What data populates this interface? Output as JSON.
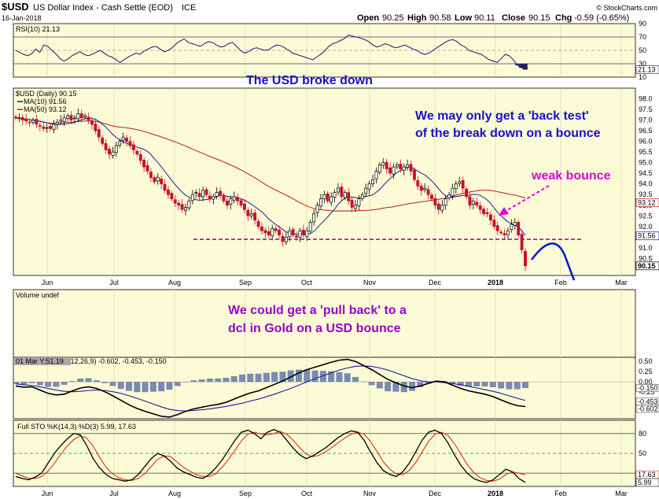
{
  "header": {
    "symbol": "$USD",
    "name": "US Dollar Index - Cash Settle (EOD)",
    "exchange": "ICE",
    "date": "16-Jan-2018",
    "watermark": "© StockCharts.com",
    "open_label": "Open",
    "open": "90.25",
    "high_label": "High",
    "high": "90.58",
    "low_label": "Low",
    "low": "90.11",
    "close_label": "Close",
    "close": "90.15",
    "chg_label": "Chg",
    "chg": "-0.59 (-0.65%)"
  },
  "colors": {
    "panel_bg": "#fbfbd6",
    "candle_up": "#000000",
    "candle_down": "#c8102e",
    "ma10": "#1a1aa0",
    "ma50": "#c01818",
    "support_line": "#8a1ab8",
    "annotation_blue": "#1a10c8",
    "annotation_magenta": "#e000e0",
    "annotation_purple": "#9a00c8",
    "macd_line": "#000000",
    "macd_signal": "#1a1aa0",
    "macd_hist": "#7a8ab0",
    "sto_k": "#000000",
    "sto_d": "#e03010",
    "projection": "#0018c8"
  },
  "annotations": {
    "usd_broke_down": "The USD broke down",
    "back_test_1": "We may only get a 'back test'",
    "back_test_2": "of the break down on a bounce",
    "weak_bounce": "weak bounce",
    "pull_back_1": "We could get a 'pull back' to a",
    "pull_back_2": "dcl in Gold on a USD bounce"
  },
  "chart_data": [
    {
      "type": "line",
      "panel": "rsi",
      "label": "RSI(10) 21.13",
      "current": 21.13,
      "ylim": [
        10,
        90
      ],
      "yticks": [
        90,
        70,
        50,
        30,
        10
      ],
      "thresholds": [
        70,
        50,
        30
      ],
      "series": [
        {
          "name": "RSI(10)",
          "values": [
            50,
            47,
            44,
            42,
            45,
            52,
            47,
            58,
            56,
            50,
            45,
            38,
            34,
            37,
            42,
            45,
            48,
            44,
            42,
            44,
            47,
            50,
            46,
            42,
            40,
            36,
            32,
            36,
            40,
            43,
            46,
            44,
            49,
            52,
            55,
            56,
            52,
            48,
            50,
            54,
            60,
            64,
            67,
            62,
            60,
            58,
            56,
            60,
            63,
            62,
            58,
            55,
            56,
            60,
            62,
            56,
            50,
            46,
            48,
            52,
            54,
            52,
            50,
            51,
            55,
            58,
            57,
            54,
            50,
            46,
            44,
            42,
            40,
            38,
            36,
            40,
            44,
            49,
            56,
            60,
            62,
            65,
            68,
            73,
            71,
            70,
            68,
            66,
            63,
            58,
            55,
            57,
            60,
            58,
            55,
            54,
            56,
            58,
            55,
            52,
            50,
            46,
            44,
            46,
            50,
            54,
            58,
            62,
            65,
            66,
            63,
            58,
            55,
            50,
            48,
            46,
            44,
            40,
            36,
            34,
            32,
            38,
            44,
            42,
            36,
            28,
            24,
            21.13
          ]
        }
      ]
    },
    {
      "type": "candlestick",
      "panel": "price",
      "label": "$USD (Daily) 90.15",
      "legend": [
        "MA(10) 91.56",
        "MA(50) 93.12"
      ],
      "ylim": [
        89.7,
        98.5
      ],
      "yticks": [
        98.0,
        97.5,
        97.0,
        96.5,
        96.0,
        95.5,
        95.0,
        94.5,
        94.0,
        93.5,
        93.0,
        92.5,
        92.0,
        91.5,
        91.0,
        90.5
      ],
      "last_value_tags": [
        "93.12",
        "91.56",
        "90.15"
      ],
      "support_level": 91.4,
      "x_labels": [
        "Jun",
        "Jul",
        "Aug",
        "Sep",
        "Oct",
        "Nov",
        "Dec",
        "2018",
        "Feb",
        "Mar"
      ],
      "close": [
        97.1,
        97.1,
        97.0,
        96.95,
        96.9,
        97.0,
        96.8,
        96.7,
        96.6,
        96.65,
        96.6,
        96.8,
        96.9,
        97.0,
        97.1,
        97.2,
        97.0,
        97.1,
        97.3,
        97.1,
        97.2,
        97.0,
        96.8,
        96.5,
        96.2,
        95.9,
        95.6,
        95.4,
        95.5,
        95.8,
        96.0,
        96.2,
        96.0,
        95.8,
        95.6,
        95.4,
        95.1,
        94.8,
        94.6,
        94.3,
        94.1,
        94.3,
        94.0,
        93.7,
        93.5,
        93.3,
        93.1,
        93.0,
        92.8,
        92.9,
        93.2,
        93.5,
        93.6,
        93.4,
        93.7,
        93.5,
        93.3,
        93.4,
        93.6,
        93.5,
        93.2,
        93.0,
        93.3,
        93.4,
        93.2,
        93.0,
        92.8,
        92.5,
        92.6,
        92.3,
        92.0,
        91.8,
        91.7,
        91.6,
        91.9,
        91.8,
        91.6,
        91.3,
        91.5,
        91.8,
        91.6,
        91.5,
        91.8,
        91.6,
        91.8,
        92.2,
        92.6,
        93.0,
        93.3,
        93.5,
        93.2,
        93.4,
        93.6,
        93.8,
        93.4,
        93.6,
        93.2,
        92.9,
        93.0,
        93.3,
        93.5,
        93.8,
        94.0,
        94.2,
        94.6,
        94.9,
        95.0,
        94.7,
        94.5,
        94.8,
        94.9,
        94.7,
        94.8,
        94.9,
        94.6,
        94.2,
        93.9,
        93.7,
        93.8,
        93.5,
        93.3,
        93.0,
        92.8,
        93.0,
        93.3,
        93.5,
        93.8,
        94.0,
        94.1,
        93.8,
        93.4,
        93.0,
        93.2,
        93.0,
        92.8,
        92.6,
        92.6,
        92.3,
        92.0,
        91.8,
        91.7,
        91.6,
        91.8,
        92.1,
        92.2,
        91.6,
        90.9,
        90.15
      ]
    },
    {
      "type": "bar",
      "panel": "volume",
      "label": "Volume undef"
    },
    {
      "type": "line",
      "panel": "macd",
      "label": "MACD(12,26,9) -0.602, -0.453, -0.150",
      "overlay_text": "01 Mar Y:51.19",
      "ylim": [
        -0.9,
        0.6
      ],
      "yticks": [
        0.5,
        0.25,
        0.0,
        -0.25
      ],
      "last_value_tags": [
        "-0.150",
        "-0.453",
        "-0.602"
      ],
      "series": [
        {
          "name": "MACD",
          "values": [
            -0.1,
            -0.13,
            -0.12,
            -0.2,
            -0.28,
            -0.32,
            -0.3,
            -0.22,
            -0.15,
            -0.12,
            -0.16,
            -0.24,
            -0.34,
            -0.45,
            -0.56,
            -0.65,
            -0.72,
            -0.78,
            -0.84,
            -0.86,
            -0.8,
            -0.72,
            -0.66,
            -0.62,
            -0.58,
            -0.55,
            -0.5,
            -0.42,
            -0.34,
            -0.27,
            -0.22,
            -0.14,
            -0.06,
            0.02,
            0.12,
            0.22,
            0.3,
            0.36,
            0.42,
            0.48,
            0.53,
            0.55,
            0.5,
            0.4,
            0.3,
            0.18,
            0.06,
            -0.02,
            -0.1,
            -0.14,
            -0.1,
            -0.04,
            0.02,
            0.0,
            -0.08,
            -0.16,
            -0.22,
            -0.26,
            -0.3,
            -0.36,
            -0.44,
            -0.52,
            -0.58,
            -0.602
          ]
        },
        {
          "name": "Signal",
          "values": [
            -0.05,
            -0.07,
            -0.09,
            -0.12,
            -0.16,
            -0.2,
            -0.23,
            -0.24,
            -0.23,
            -0.21,
            -0.2,
            -0.21,
            -0.24,
            -0.28,
            -0.34,
            -0.4,
            -0.47,
            -0.54,
            -0.61,
            -0.67,
            -0.7,
            -0.71,
            -0.7,
            -0.68,
            -0.66,
            -0.63,
            -0.6,
            -0.56,
            -0.52,
            -0.47,
            -0.42,
            -0.36,
            -0.3,
            -0.23,
            -0.16,
            -0.08,
            0.0,
            0.08,
            0.15,
            0.22,
            0.29,
            0.34,
            0.38,
            0.39,
            0.38,
            0.34,
            0.29,
            0.22,
            0.15,
            0.08,
            0.03,
            0.0,
            0.0,
            -0.02,
            -0.04,
            -0.07,
            -0.11,
            -0.15,
            -0.19,
            -0.23,
            -0.28,
            -0.34,
            -0.4,
            -0.453
          ]
        },
        {
          "name": "Histogram",
          "values": [
            -0.05,
            -0.06,
            -0.03,
            -0.08,
            -0.12,
            -0.12,
            -0.07,
            0.02,
            0.08,
            0.09,
            0.04,
            -0.03,
            -0.1,
            -0.17,
            -0.22,
            -0.25,
            -0.25,
            -0.24,
            -0.23,
            -0.19,
            -0.1,
            -0.01,
            0.04,
            0.06,
            0.08,
            0.08,
            0.1,
            0.14,
            0.18,
            0.2,
            0.2,
            0.22,
            0.24,
            0.25,
            0.28,
            0.3,
            0.3,
            0.28,
            0.27,
            0.26,
            0.24,
            0.21,
            0.12,
            0.01,
            -0.08,
            -0.16,
            -0.23,
            -0.24,
            -0.25,
            -0.22,
            -0.13,
            -0.04,
            0.02,
            0.02,
            -0.04,
            -0.09,
            -0.11,
            -0.11,
            -0.11,
            -0.13,
            -0.16,
            -0.18,
            -0.18,
            -0.15
          ]
        }
      ]
    },
    {
      "type": "line",
      "panel": "stochastic",
      "label": "Full STO %K(14,3) %D(3) 5.99, 17.63",
      "ylim": [
        0,
        100
      ],
      "yticks": [
        80,
        50
      ],
      "thresholds": [
        80,
        50,
        20
      ],
      "last_value_tags": [
        "17.63",
        "5.99"
      ],
      "series": [
        {
          "name": "%K",
          "values": [
            15,
            12,
            10,
            14,
            20,
            35,
            50,
            62,
            72,
            80,
            78,
            62,
            42,
            28,
            18,
            12,
            10,
            8,
            10,
            18,
            30,
            42,
            50,
            46,
            38,
            28,
            22,
            18,
            14,
            12,
            18,
            28,
            40,
            55,
            70,
            82,
            85,
            80,
            72,
            82,
            86,
            82,
            70,
            58,
            48,
            42,
            46,
            52,
            58,
            66,
            74,
            80,
            84,
            82,
            70,
            52,
            36,
            24,
            18,
            15,
            22,
            35,
            52,
            70,
            82,
            85,
            80,
            66,
            48,
            32,
            20,
            12,
            8,
            6,
            10,
            18,
            26,
            22,
            12,
            5.99
          ]
        },
        {
          "name": "%D",
          "values": [
            20,
            16,
            12,
            12,
            15,
            23,
            35,
            49,
            61,
            71,
            77,
            73,
            61,
            44,
            29,
            19,
            13,
            10,
            9,
            12,
            19,
            30,
            41,
            46,
            45,
            37,
            29,
            23,
            18,
            15,
            15,
            19,
            29,
            41,
            55,
            69,
            79,
            82,
            79,
            78,
            80,
            83,
            79,
            70,
            59,
            49,
            45,
            47,
            52,
            59,
            66,
            73,
            79,
            82,
            79,
            68,
            53,
            37,
            26,
            19,
            18,
            24,
            36,
            52,
            68,
            79,
            82,
            77,
            65,
            49,
            33,
            21,
            13,
            9,
            8,
            11,
            18,
            22,
            20,
            17.63
          ]
        }
      ]
    }
  ]
}
